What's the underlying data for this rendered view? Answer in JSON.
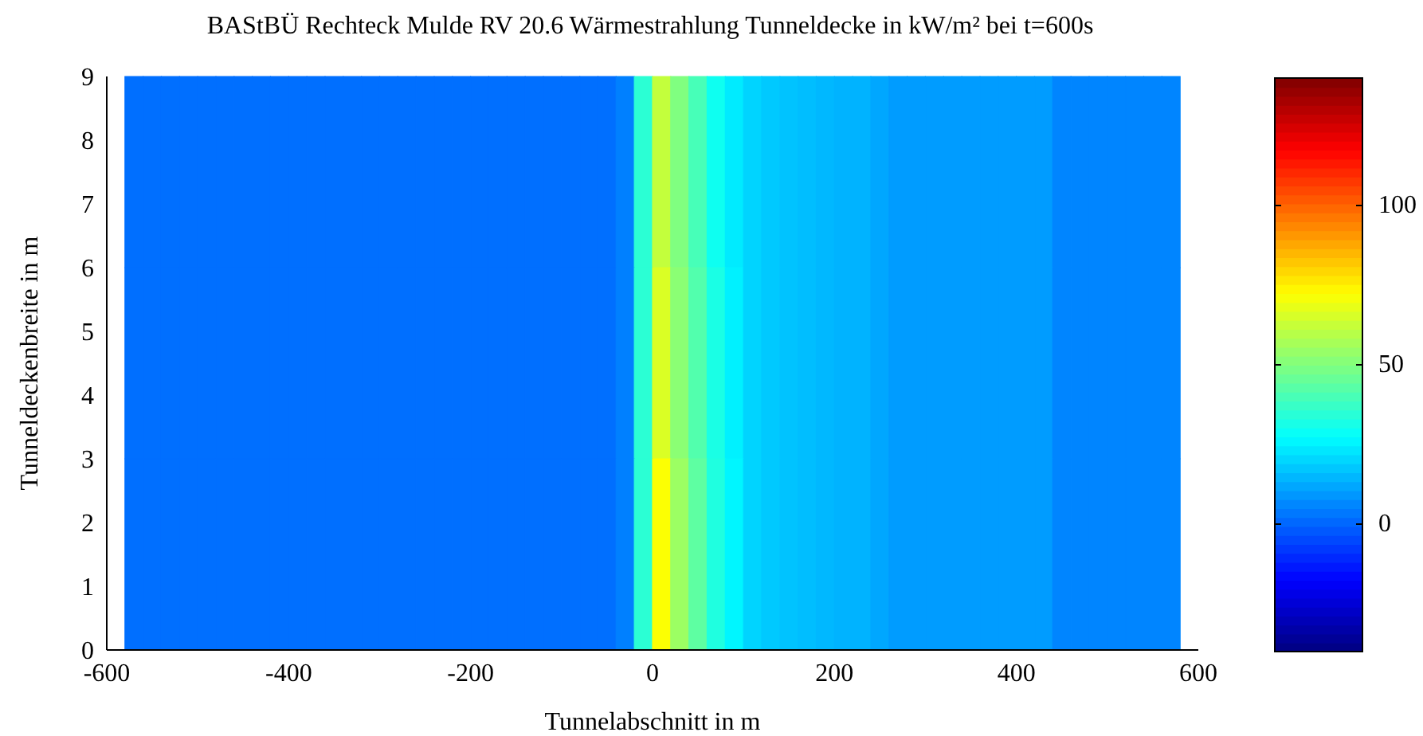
{
  "chart_data": {
    "type": "heatmap",
    "title": "BAStBÜ Rechteck Mulde RV 20.6 Wärmestrahlung Tunneldecke in kW/m² bei t=600s",
    "xlabel": "Tunnelabschnitt in m",
    "ylabel": "Tunneldeckenbreite in m",
    "x": [
      -570,
      -550,
      -530,
      -510,
      -490,
      -470,
      -450,
      -430,
      -410,
      -390,
      -370,
      -350,
      -330,
      -310,
      -290,
      -270,
      -250,
      -230,
      -210,
      -190,
      -170,
      -150,
      -130,
      -110,
      -90,
      -70,
      -50,
      -30,
      -10,
      10,
      30,
      50,
      70,
      90,
      110,
      130,
      150,
      170,
      190,
      210,
      230,
      250,
      270,
      290,
      310,
      330,
      350,
      370,
      390,
      410,
      430,
      450,
      470,
      490,
      510,
      530,
      550,
      570
    ],
    "cells": [
      [
        2,
        2,
        2,
        2,
        2,
        2,
        2,
        2,
        2,
        2,
        2,
        2,
        2,
        2,
        2,
        2,
        2,
        2,
        2,
        2,
        2,
        2,
        2,
        2,
        2,
        2,
        2,
        5,
        35,
        62,
        50,
        40,
        30,
        24,
        20,
        18,
        17,
        16,
        15,
        14,
        14,
        12,
        10,
        10,
        10,
        10,
        10,
        10,
        10,
        10,
        10,
        6,
        6,
        6,
        6,
        6,
        6,
        6
      ],
      [
        2,
        2,
        2,
        2,
        2,
        2,
        2,
        2,
        2,
        2,
        2,
        2,
        2,
        2,
        2,
        2,
        2,
        2,
        2,
        2,
        2,
        2,
        2,
        2,
        2,
        2,
        2,
        5,
        35,
        66,
        52,
        42,
        32,
        25,
        20,
        18,
        17,
        16,
        15,
        14,
        14,
        12,
        10,
        10,
        10,
        10,
        10,
        10,
        10,
        10,
        10,
        6,
        6,
        6,
        6,
        6,
        6,
        6
      ],
      [
        2,
        2,
        2,
        2,
        2,
        2,
        2,
        2,
        2,
        2,
        2,
        2,
        2,
        2,
        2,
        2,
        2,
        2,
        2,
        2,
        2,
        2,
        2,
        2,
        2,
        2,
        2,
        5,
        35,
        72,
        55,
        44,
        33,
        26,
        20,
        18,
        17,
        16,
        15,
        14,
        14,
        12,
        10,
        10,
        10,
        10,
        10,
        10,
        10,
        10,
        10,
        6,
        6,
        6,
        6,
        6,
        6,
        6
      ]
    ],
    "xlim": [
      -600,
      600
    ],
    "xticks": [
      -600,
      -400,
      -200,
      0,
      200,
      400,
      600
    ],
    "ylim": [
      0,
      9
    ],
    "yticks": [
      0,
      1,
      2,
      3,
      4,
      5,
      6,
      7,
      8,
      9
    ],
    "clim": [
      -40,
      140
    ],
    "cticks": [
      0,
      50,
      100
    ]
  }
}
